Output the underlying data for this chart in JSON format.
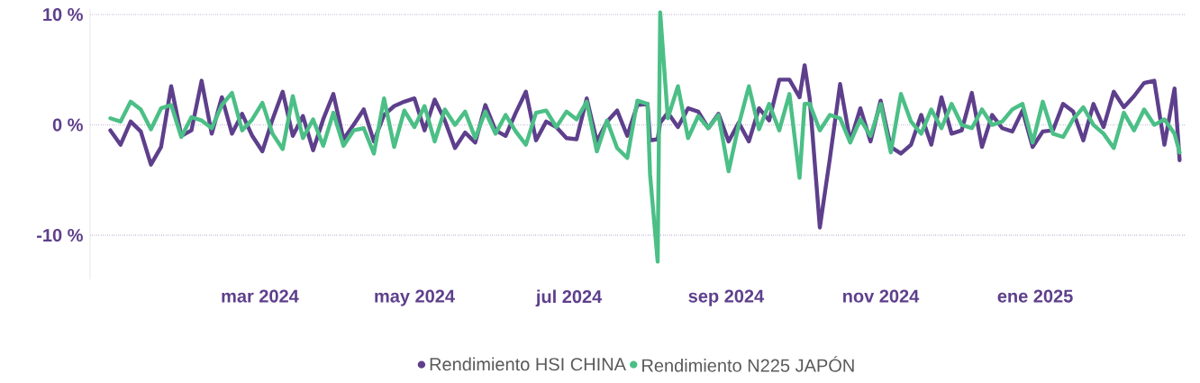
{
  "chart_data": {
    "type": "line",
    "x": [
      "2024-01-02",
      "2024-01-06",
      "2024-01-10",
      "2024-01-14",
      "2024-01-18",
      "2024-01-22",
      "2024-01-26",
      "2024-01-30",
      "2024-02-03",
      "2024-02-07",
      "2024-02-11",
      "2024-02-15",
      "2024-02-19",
      "2024-02-23",
      "2024-02-27",
      "2024-03-02",
      "2024-03-06",
      "2024-03-10",
      "2024-03-14",
      "2024-03-18",
      "2024-03-22",
      "2024-03-26",
      "2024-03-30",
      "2024-04-03",
      "2024-04-07",
      "2024-04-11",
      "2024-04-15",
      "2024-04-19",
      "2024-04-23",
      "2024-04-27",
      "2024-05-01",
      "2024-05-05",
      "2024-05-09",
      "2024-05-13",
      "2024-05-17",
      "2024-05-21",
      "2024-05-25",
      "2024-05-29",
      "2024-06-02",
      "2024-06-06",
      "2024-06-10",
      "2024-06-14",
      "2024-06-18",
      "2024-06-22",
      "2024-06-26",
      "2024-06-30",
      "2024-07-04",
      "2024-07-08",
      "2024-07-12",
      "2024-07-16",
      "2024-07-20",
      "2024-07-24",
      "2024-07-28",
      "2024-08-01",
      "2024-08-02",
      "2024-08-05",
      "2024-08-06",
      "2024-08-09",
      "2024-08-13",
      "2024-08-17",
      "2024-08-21",
      "2024-08-25",
      "2024-08-29",
      "2024-09-02",
      "2024-09-06",
      "2024-09-10",
      "2024-09-14",
      "2024-09-18",
      "2024-09-22",
      "2024-09-26",
      "2024-09-30",
      "2024-10-02",
      "2024-10-04",
      "2024-10-08",
      "2024-10-12",
      "2024-10-16",
      "2024-10-20",
      "2024-10-24",
      "2024-10-28",
      "2024-11-01",
      "2024-11-05",
      "2024-11-09",
      "2024-11-13",
      "2024-11-17",
      "2024-11-21",
      "2024-11-25",
      "2024-11-29",
      "2024-12-03",
      "2024-12-07",
      "2024-12-11",
      "2024-12-15",
      "2024-12-19",
      "2024-12-23",
      "2024-12-27",
      "2024-12-31",
      "2025-01-04",
      "2025-01-08",
      "2025-01-12",
      "2025-01-16",
      "2025-01-20",
      "2025-01-24",
      "2025-01-28",
      "2025-02-01",
      "2025-02-05",
      "2025-02-09",
      "2025-02-13",
      "2025-02-17",
      "2025-02-21",
      "2025-02-25",
      "2025-02-27"
    ],
    "series": [
      {
        "name": "Rendimiento HSI CHINA",
        "color": "#5e3f8c",
        "values": [
          -0.5,
          -1.8,
          0.3,
          -0.6,
          -3.6,
          -2.0,
          3.5,
          -1.0,
          -0.5,
          4.0,
          -0.8,
          2.5,
          -0.8,
          1.0,
          -1.0,
          -2.4,
          0.5,
          3.0,
          -1.0,
          0.8,
          -2.3,
          0.5,
          2.8,
          -1.3,
          0.0,
          1.4,
          -1.5,
          0.9,
          1.7,
          2.1,
          2.4,
          -0.5,
          2.3,
          0.4,
          -2.1,
          -0.7,
          -1.6,
          1.8,
          -0.5,
          -1.0,
          1.1,
          3.0,
          -1.4,
          0.3,
          -0.2,
          -1.2,
          -1.3,
          2.4,
          -1.5,
          0.3,
          1.3,
          -1.0,
          1.8,
          1.9,
          -1.4,
          -1.3,
          0.2,
          1.1,
          -0.2,
          1.5,
          1.2,
          -0.3,
          1.0,
          -1.5,
          0.2,
          -1.5,
          1.5,
          0.4,
          4.1,
          4.1,
          2.5,
          5.4,
          2.4,
          -9.3,
          -3.0,
          3.7,
          -1.5,
          1.5,
          -1.5,
          2.2,
          -2.0,
          -2.6,
          -1.8,
          0.9,
          -1.8,
          2.5,
          -0.8,
          -0.5,
          2.9,
          -2.0,
          0.9,
          -0.3,
          -0.6,
          1.3,
          -2.0,
          -0.6,
          -0.5,
          1.9,
          1.2,
          -1.4,
          1.9,
          -0.2,
          3.0,
          1.6,
          2.6,
          3.8,
          4.0,
          -1.8,
          3.3,
          -3.2
        ]
      },
      {
        "name": "Rendimiento N225 JAPÓN",
        "color": "#4bbf86",
        "values": [
          0.6,
          0.3,
          2.1,
          1.4,
          -0.4,
          1.5,
          1.8,
          -1.1,
          0.7,
          0.4,
          -0.3,
          1.8,
          2.9,
          -0.5,
          0.5,
          2.0,
          -0.8,
          -2.2,
          2.6,
          -1.2,
          0.5,
          -1.9,
          1.1,
          -1.9,
          -0.5,
          -0.3,
          -2.6,
          2.4,
          -2.0,
          1.3,
          -0.2,
          1.7,
          -1.5,
          1.4,
          0.0,
          1.2,
          -1.2,
          1.2,
          -0.8,
          0.9,
          -0.6,
          -1.8,
          1.1,
          1.3,
          -0.2,
          1.2,
          0.5,
          2.1,
          -2.4,
          0.4,
          -2.1,
          -3.0,
          2.2,
          1.9,
          -4.5,
          -12.4,
          10.2,
          0.6,
          3.5,
          -1.2,
          0.8,
          -0.3,
          0.9,
          -4.2,
          0.0,
          3.5,
          -0.4,
          1.9,
          -0.5,
          2.8,
          -4.8,
          1.9,
          1.9,
          -0.5,
          0.9,
          0.6,
          -1.6,
          0.5,
          -1.0,
          1.9,
          -2.5,
          2.8,
          0.3,
          -0.8,
          1.4,
          -0.3,
          1.9,
          0.0,
          -0.3,
          1.4,
          0.0,
          0.3,
          1.4,
          1.9,
          -1.6,
          2.1,
          -0.8,
          -1.1,
          0.5,
          1.6,
          0.0,
          -0.8,
          -2.1,
          1.1,
          -0.5,
          1.4,
          0.0,
          0.5,
          -0.8,
          -2.5
        ]
      }
    ],
    "xlim": [
      "2023-12-25",
      "2025-03-01"
    ],
    "xticks": [
      {
        "value": "2024-03-01",
        "label": "mar 2024"
      },
      {
        "value": "2024-05-01",
        "label": "may 2024"
      },
      {
        "value": "2024-07-01",
        "label": "jul 2024"
      },
      {
        "value": "2024-09-01",
        "label": "sep 2024"
      },
      {
        "value": "2024-11-01",
        "label": "nov 2024"
      },
      {
        "value": "2025-01-01",
        "label": "ene 2025"
      }
    ],
    "ylim": [
      -14,
      10.5
    ],
    "yticks": [
      {
        "value": -10,
        "label": "-10 %"
      },
      {
        "value": 0,
        "label": "0 %"
      },
      {
        "value": 10,
        "label": "10 %"
      }
    ],
    "grid": "y",
    "legend": "bottom",
    "marker": "none",
    "line_style": "solid"
  }
}
